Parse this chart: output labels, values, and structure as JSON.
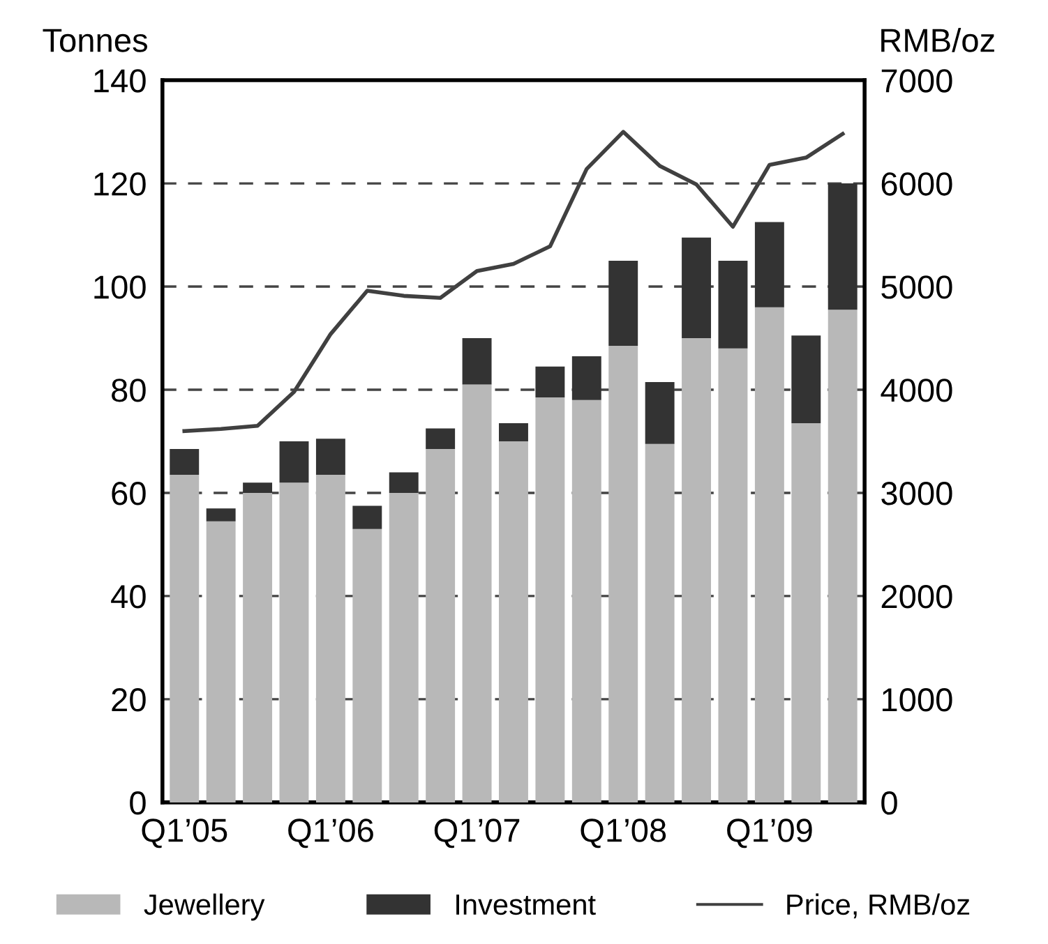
{
  "chart_data": {
    "type": "bar",
    "stacked": true,
    "categories": [
      "Q1’05",
      null,
      null,
      null,
      "Q1’06",
      null,
      null,
      null,
      "Q1’07",
      null,
      null,
      null,
      "Q1’08",
      null,
      null,
      null,
      "Q1’09",
      null,
      null
    ],
    "series": [
      {
        "name": "Jewellery",
        "color": "#b8b8b8",
        "values": [
          63.5,
          54.5,
          60,
          62,
          63.5,
          53,
          60,
          68.5,
          81,
          70,
          78.5,
          78,
          88.5,
          69.5,
          90,
          88,
          96,
          73.5,
          95.5
        ]
      },
      {
        "name": "Investment",
        "color": "#333333",
        "values": [
          5,
          2.5,
          2,
          8,
          7,
          4.5,
          4,
          4,
          9,
          3.5,
          6,
          8.5,
          16.5,
          12,
          19.5,
          17,
          16.5,
          17,
          24.5
        ]
      },
      {
        "name": "Price, RMB/oz",
        "type": "line",
        "axis": "y2",
        "color": "#404040",
        "values": [
          3600,
          3620,
          3650,
          3980,
          4540,
          4960,
          4910,
          4890,
          5150,
          5220,
          5390,
          6140,
          6500,
          6170,
          5990,
          5580,
          6180,
          6250,
          6480
        ]
      }
    ],
    "ylabel": "Tonnes",
    "y2label": "RMB/oz",
    "ylim": [
      0,
      140
    ],
    "yticks": [
      0,
      20,
      40,
      60,
      80,
      100,
      120,
      140
    ],
    "y2lim": [
      0,
      7000
    ],
    "y2ticks": [
      0,
      1000,
      2000,
      3000,
      4000,
      5000,
      6000,
      7000
    ],
    "grid": "y",
    "legend": "bottom"
  }
}
